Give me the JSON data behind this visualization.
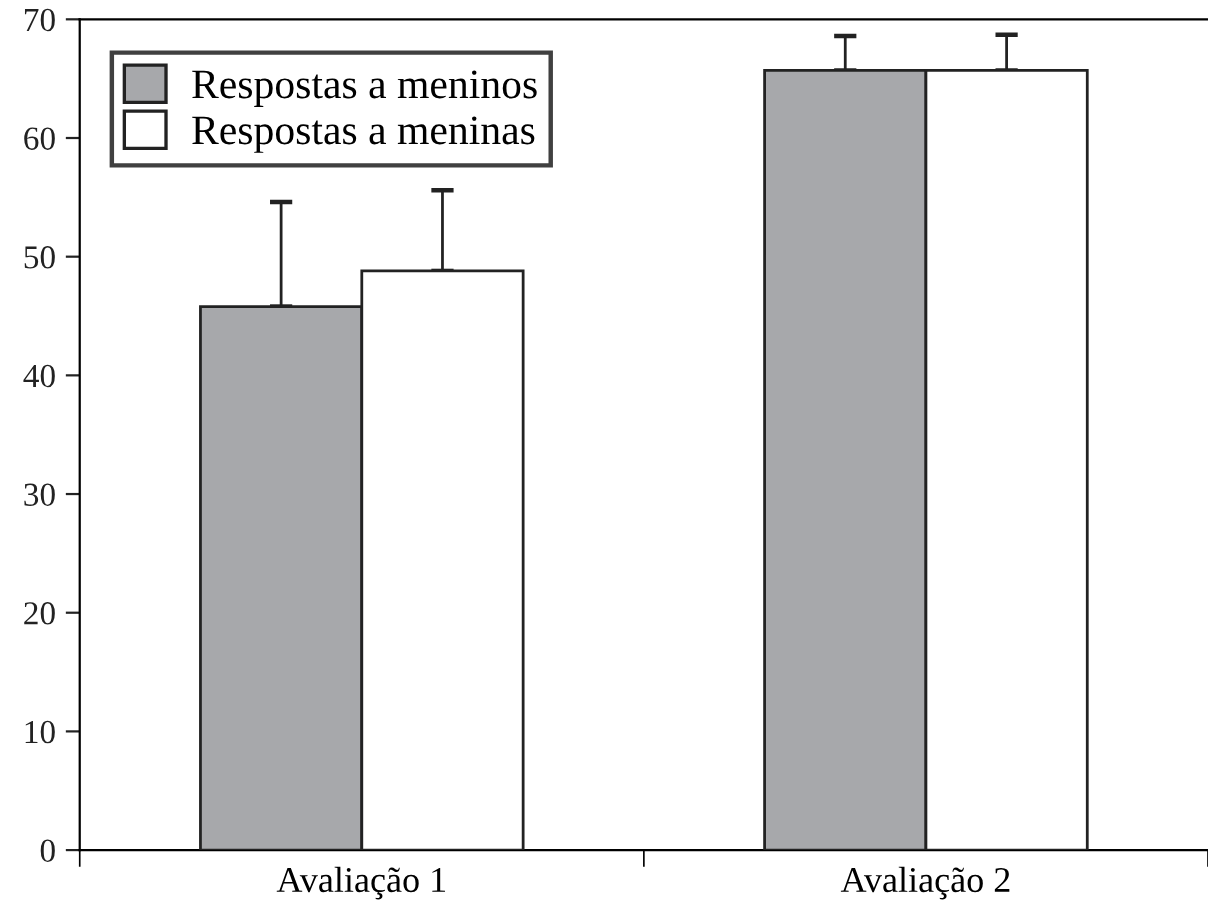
{
  "chart_data": {
    "type": "bar",
    "categories": [
      "Avaliação 1",
      "Avaliação 2"
    ],
    "series": [
      {
        "name": "Respostas a meninos",
        "color": "#a7a8ab",
        "values": [
          45.8,
          65.7
        ],
        "errors": [
          [
            45.8,
            54.6
          ],
          [
            65.7,
            68.6
          ]
        ]
      },
      {
        "name": "Respostas a meninas",
        "color": "#ffffff",
        "values": [
          48.8,
          65.7
        ],
        "errors": [
          [
            48.8,
            55.6
          ],
          [
            65.7,
            68.7
          ]
        ]
      }
    ],
    "ylim": [
      0,
      70
    ],
    "yticks": [
      0,
      10,
      20,
      30,
      40,
      50,
      60,
      70
    ],
    "grid": false,
    "legend": "top left"
  }
}
